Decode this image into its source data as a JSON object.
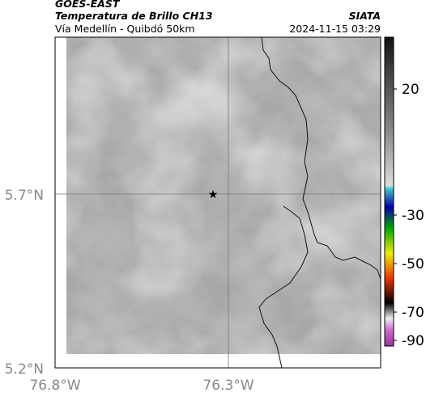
{
  "header": {
    "source": "GOES-EAST",
    "title": "Temperatura de Brillo CH13",
    "subtitle": "Vía Medellín - Quibdó 50km",
    "org": "SIATA",
    "timestamp": "2024-11-15 03:29"
  },
  "map": {
    "lat_ticks": [
      "5.7°N",
      "5.2°N"
    ],
    "lon_ticks": [
      "76.8°W",
      "76.3°W"
    ]
  },
  "colorbar": {
    "ticks": [
      "20",
      "-30",
      "-50",
      "-70",
      "-90"
    ]
  }
}
